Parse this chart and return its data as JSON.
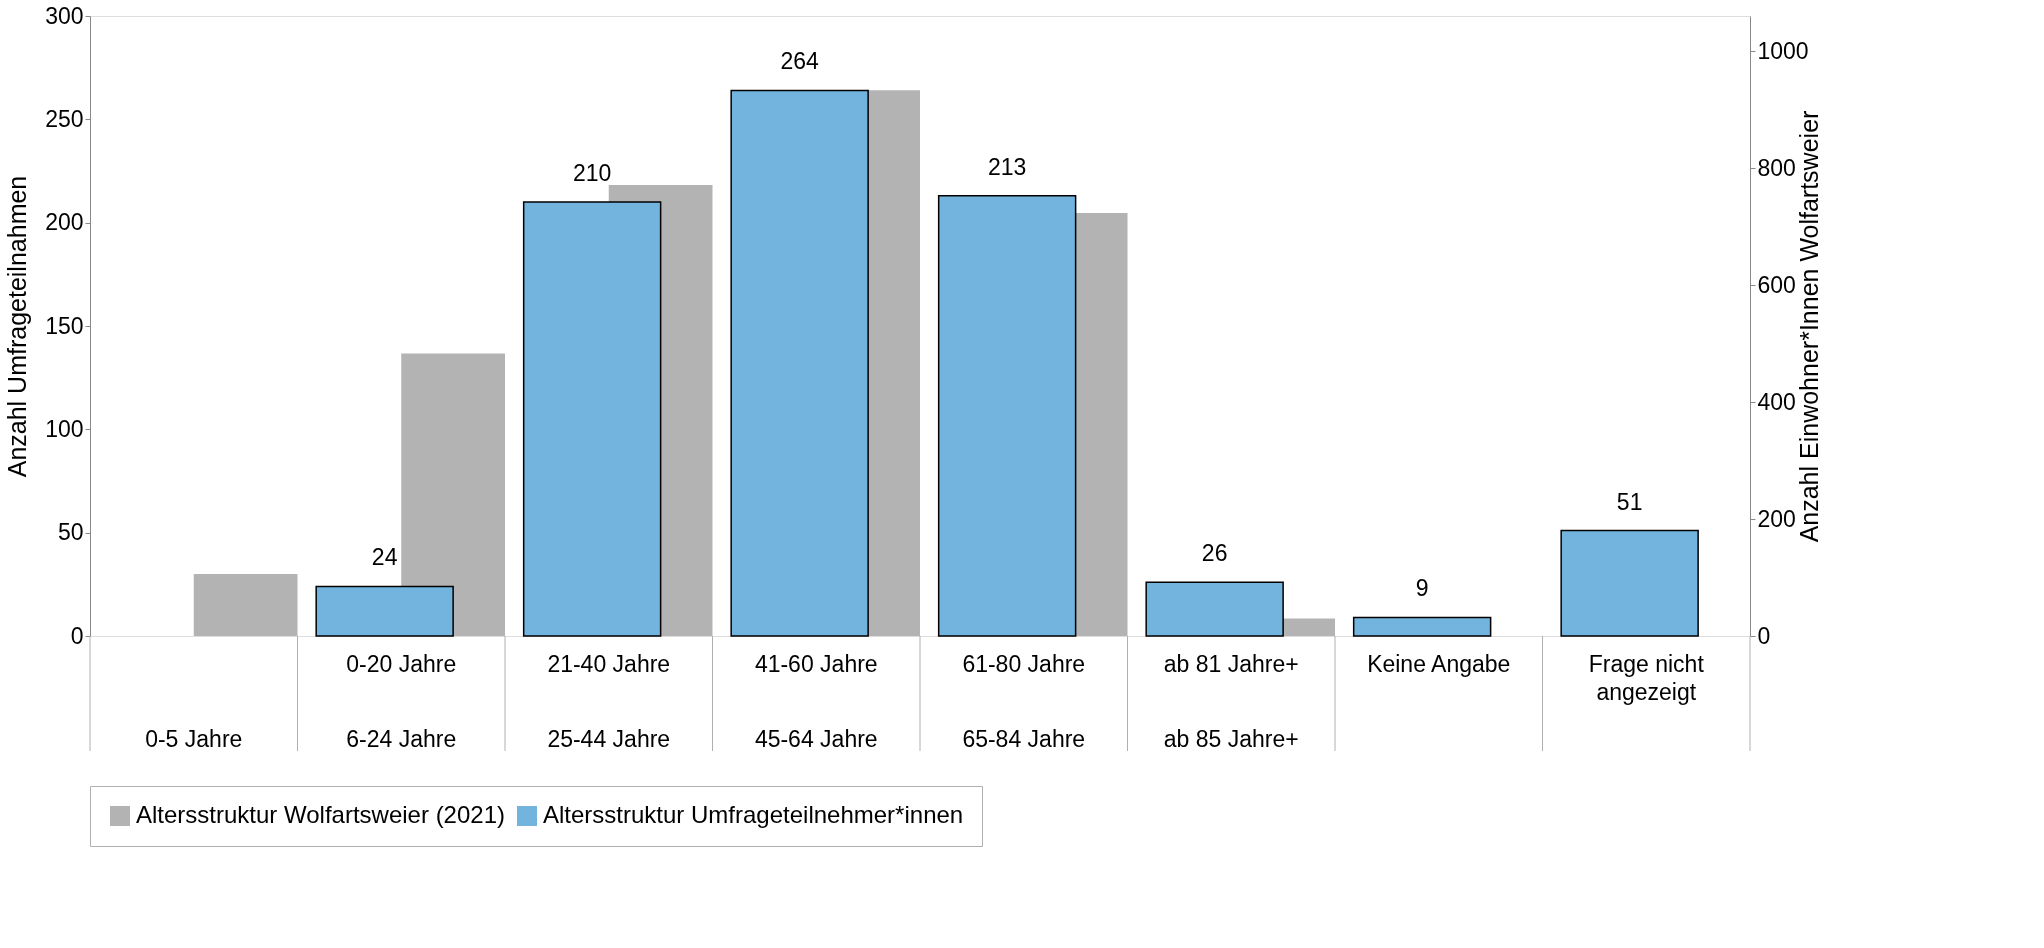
{
  "chart_data": {
    "type": "bar",
    "categories": [
      null,
      "0-20 Jahre",
      "21-40 Jahre",
      "41-60 Jahre",
      "61-80 Jahre",
      "ab 81 Jahre+",
      "Keine Angabe",
      "Frage nicht angezeigt"
    ],
    "series": [
      {
        "name": "Altersstruktur Wolfartsweier (2021)",
        "color": "#b3b3b3",
        "axis": "y2",
        "values": [
          106,
          483,
          771,
          933,
          723,
          30,
          null,
          null
        ]
      },
      {
        "name": "Altersstruktur Umfrageteilnehmer*innen",
        "color": "#72b4de",
        "values": [
          null,
          24,
          210,
          264,
          213,
          26,
          9,
          51
        ],
        "value_labels": [
          null,
          "24",
          "210",
          "264",
          "213",
          "26",
          "9",
          "51"
        ]
      }
    ],
    "annotations": [
      "0-5 Jahre",
      "6-24 Jahre",
      "25-44 Jahre",
      "45-64 Jahre",
      "65-84 Jahre",
      "ab 85 Jahre+"
    ],
    "ylabel": "Anzahl Umfrageteilnahmen",
    "y2label": "Anzahl Einwohner*Innen Wolfartsweier",
    "ylim": [
      0,
      300
    ],
    "yticks": [
      0,
      50,
      100,
      150,
      200,
      250,
      300
    ],
    "y2lim": [
      0,
      1060
    ],
    "y2ticks": [
      0,
      200,
      400,
      600,
      800,
      1000
    ],
    "legend": "bottom",
    "grid": false
  }
}
